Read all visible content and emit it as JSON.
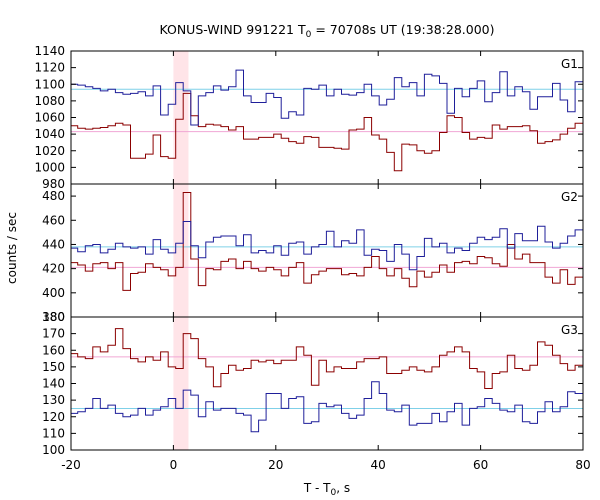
{
  "chart_data": {
    "type": "line",
    "title": "KONUS-WIND 991221 T",
    "title_sub": "0",
    "title_rest": " = 70708s UT (19:38:28.000)",
    "xlabel": "T - T",
    "xlabel_sub": "0",
    "xlabel_rest": ", s",
    "ylabel": "counts / sec",
    "xlim": [
      -20,
      80
    ],
    "x_ticks": [
      -20,
      0,
      20,
      40,
      60,
      80
    ],
    "highlight_interval": [
      0,
      2.944
    ],
    "highlight_color": "#ffe4e8",
    "colors": {
      "blue": "#1f1f9a",
      "red": "#8b0000",
      "cyan": "#7fd0e8",
      "pink": "#f0a6d4"
    },
    "x_edges": [
      -20.16,
      -18.688,
      -17.216,
      -15.744,
      -14.272,
      -12.8,
      -11.328,
      -9.856,
      -8.384,
      -6.912,
      -5.44,
      -3.968,
      -2.496,
      -1.024,
      0.448,
      1.92,
      3.392,
      4.864,
      6.336,
      7.808,
      9.28,
      10.752,
      12.224,
      13.696,
      15.168,
      16.64,
      18.112,
      19.584,
      21.056,
      22.528,
      24.0,
      25.472,
      26.944,
      28.416,
      29.888,
      31.36,
      32.832,
      34.304,
      35.776,
      37.248,
      38.72,
      40.192,
      41.664,
      43.136,
      44.608,
      46.08,
      47.552,
      49.024,
      50.496,
      51.968,
      53.44,
      54.912,
      56.384,
      57.856,
      59.328,
      60.8,
      62.272,
      63.744,
      65.216,
      66.688,
      68.16,
      69.632,
      71.104,
      72.576,
      74.048,
      75.52,
      76.992,
      78.464,
      79.936
    ],
    "panels": [
      {
        "label": "G1",
        "ylim": [
          980,
          1140
        ],
        "y_ticks": [
          980,
          1000,
          1020,
          1040,
          1060,
          1080,
          1100,
          1120,
          1140
        ],
        "blue_mean": 1094,
        "red_mean": 1043,
        "blue": [
          1100,
          1099,
          1097,
          1095,
          1092,
          1094,
          1090,
          1088,
          1089,
          1091,
          1086,
          1098,
          1063,
          1076,
          1102,
          1092,
          1051,
          1086,
          1090,
          1098,
          1093,
          1097,
          1117,
          1086,
          1078,
          1078,
          1089,
          1084,
          1059,
          1067,
          1063,
          1095,
          1094,
          1099,
          1086,
          1094,
          1088,
          1087,
          1090,
          1100,
          1086,
          1075,
          1082,
          1108,
          1097,
          1102,
          1086,
          1112,
          1110,
          1101,
          1065,
          1095,
          1085,
          1095,
          1104,
          1079,
          1090,
          1115,
          1086,
          1097,
          1091,
          1070,
          1085,
          1085,
          1101,
          1081,
          1067,
          1103
        ],
        "red": [
          1050,
          1047,
          1046,
          1047,
          1048,
          1050,
          1053,
          1051,
          1011,
          1011,
          1016,
          1039,
          1013,
          1011,
          1058,
          1089,
          1062,
          1049,
          1052,
          1051,
          1049,
          1045,
          1049,
          1034,
          1034,
          1036,
          1036,
          1040,
          1035,
          1031,
          1029,
          1037,
          1036,
          1024,
          1024,
          1023,
          1022,
          1045,
          1046,
          1060,
          1039,
          1034,
          1018,
          996,
          1028,
          1027,
          1020,
          1017,
          1020,
          1042,
          1062,
          1060,
          1042,
          1034,
          1036,
          1035,
          1051,
          1046,
          1049,
          1049,
          1050,
          1044,
          1029,
          1031,
          1033,
          1040,
          1047,
          1053
        ]
      },
      {
        "label": "G2",
        "ylim": [
          380,
          490
        ],
        "y_ticks": [
          380,
          400,
          420,
          440,
          460,
          480
        ],
        "blue_mean": 438,
        "red_mean": 421,
        "blue": [
          437,
          434,
          439,
          440,
          433,
          436,
          441,
          438,
          437,
          438,
          432,
          444,
          436,
          433,
          441,
          459,
          439,
          429,
          442,
          446,
          447,
          447,
          439,
          448,
          433,
          435,
          433,
          439,
          431,
          441,
          442,
          432,
          438,
          440,
          451,
          438,
          443,
          441,
          452,
          431,
          436,
          435,
          426,
          440,
          432,
          419,
          430,
          445,
          438,
          441,
          433,
          437,
          435,
          441,
          446,
          444,
          446,
          453,
          437,
          449,
          443,
          443,
          455,
          442,
          437,
          441,
          447,
          452
        ],
        "red": [
          425,
          423,
          418,
          424,
          425,
          420,
          425,
          402,
          416,
          417,
          424,
          421,
          419,
          414,
          421,
          483,
          428,
          406,
          420,
          419,
          426,
          428,
          420,
          426,
          420,
          418,
          421,
          419,
          414,
          421,
          425,
          408,
          415,
          418,
          420,
          420,
          415,
          416,
          414,
          421,
          430,
          420,
          414,
          420,
          412,
          405,
          418,
          413,
          417,
          423,
          417,
          425,
          426,
          424,
          430,
          429,
          424,
          422,
          440,
          428,
          432,
          425,
          425,
          413,
          408,
          419,
          407,
          413
        ]
      },
      {
        "label": "G3",
        "ylim": [
          100,
          180
        ],
        "y_ticks": [
          100,
          110,
          120,
          130,
          140,
          150,
          160,
          170,
          180
        ],
        "blue_mean": 125,
        "red_mean": 156,
        "blue": [
          122,
          123,
          125,
          131,
          125,
          127,
          122,
          120,
          121,
          125,
          121,
          124,
          126,
          131,
          125,
          136,
          133,
          120,
          129,
          124,
          125,
          125,
          122,
          121,
          111,
          118,
          134,
          134,
          125,
          131,
          132,
          116,
          117,
          128,
          126,
          127,
          122,
          119,
          121,
          131,
          141,
          134,
          124,
          123,
          127,
          115,
          116,
          116,
          122,
          117,
          123,
          128,
          115,
          125,
          126,
          131,
          128,
          124,
          123,
          127,
          117,
          116,
          123,
          129,
          123,
          126,
          135,
          134
        ],
        "red": [
          158,
          156,
          155,
          162,
          159,
          163,
          173,
          161,
          155,
          153,
          156,
          154,
          159,
          150,
          149,
          170,
          167,
          155,
          150,
          138,
          146,
          151,
          148,
          149,
          154,
          153,
          154,
          152,
          154,
          154,
          162,
          157,
          139,
          154,
          147,
          150,
          149,
          149,
          153,
          155,
          155,
          156,
          146,
          146,
          148,
          150,
          148,
          147,
          150,
          157,
          159,
          162,
          159,
          149,
          147,
          137,
          146,
          147,
          157,
          149,
          148,
          151,
          165,
          163,
          157,
          152,
          148,
          151
        ]
      }
    ]
  }
}
